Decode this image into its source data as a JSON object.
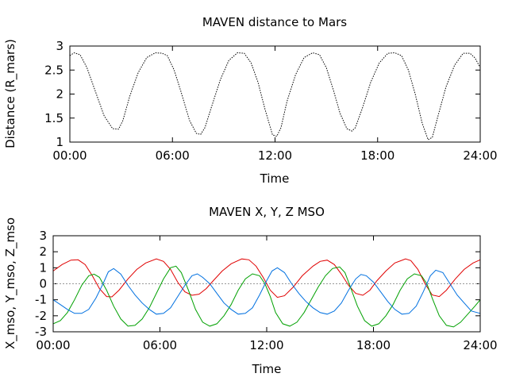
{
  "chart_data": [
    {
      "type": "line",
      "title": "MAVEN distance to Mars",
      "xlabel": "Time",
      "ylabel": "Distance (R_mars)",
      "x_ticks": [
        "00:00",
        "06:00",
        "12:00",
        "18:00",
        "24:00"
      ],
      "xlim_hours": [
        0,
        24
      ],
      "ylim": [
        1,
        3
      ],
      "y_ticks": [
        "1",
        "1.5",
        "2",
        "2.5",
        "3"
      ],
      "grid": false,
      "series": [
        {
          "color": "#000000",
          "dash": true,
          "x_hours": [
            0,
            0.25,
            0.6,
            1.0,
            1.5,
            2.0,
            2.5,
            2.85,
            3.1,
            3.5,
            4.0,
            4.5,
            5.0,
            5.4,
            5.7,
            6.1,
            6.5,
            7.0,
            7.4,
            7.65,
            7.9,
            8.3,
            8.8,
            9.3,
            9.8,
            10.2,
            10.6,
            11.0,
            11.4,
            11.85,
            12.1,
            12.35,
            12.7,
            13.2,
            13.7,
            14.2,
            14.6,
            15.0,
            15.4,
            15.8,
            16.2,
            16.5,
            16.7,
            17.1,
            17.6,
            18.1,
            18.6,
            19.0,
            19.4,
            19.8,
            20.2,
            20.6,
            20.95,
            21.2,
            21.5,
            22.0,
            22.5,
            23.0,
            23.4,
            23.7,
            24.0
          ],
          "values": [
            2.8,
            2.86,
            2.82,
            2.55,
            2.05,
            1.55,
            1.28,
            1.27,
            1.45,
            1.95,
            2.45,
            2.76,
            2.86,
            2.85,
            2.8,
            2.5,
            2.05,
            1.45,
            1.18,
            1.16,
            1.3,
            1.75,
            2.3,
            2.7,
            2.86,
            2.85,
            2.65,
            2.25,
            1.7,
            1.15,
            1.12,
            1.3,
            1.85,
            2.4,
            2.76,
            2.86,
            2.82,
            2.55,
            2.1,
            1.6,
            1.28,
            1.23,
            1.3,
            1.7,
            2.25,
            2.65,
            2.85,
            2.86,
            2.8,
            2.5,
            2.0,
            1.4,
            1.05,
            1.1,
            1.5,
            2.15,
            2.6,
            2.85,
            2.85,
            2.75,
            2.55
          ]
        }
      ]
    },
    {
      "type": "line",
      "title": "MAVEN X, Y, Z MSO",
      "xlabel": "Time",
      "ylabel": "X_mso, Y_mso, Z_mso",
      "x_ticks": [
        "00:00",
        "06:00",
        "12:00",
        "18:00",
        "24:00"
      ],
      "xlim_hours": [
        0,
        24
      ],
      "ylim": [
        -3,
        3
      ],
      "y_ticks": [
        "-3",
        "-2",
        "-1",
        "0",
        "1",
        "2",
        "3"
      ],
      "zero_line": true,
      "grid": false,
      "series": [
        {
          "color": "#e00000",
          "x_hours": [
            0,
            0.5,
            1.0,
            1.4,
            1.8,
            2.2,
            2.6,
            3.0,
            3.3,
            3.7,
            4.2,
            4.7,
            5.2,
            5.8,
            6.2,
            6.6,
            7.0,
            7.4,
            7.8,
            8.2,
            8.6,
            9.0,
            9.5,
            10.0,
            10.6,
            11.0,
            11.4,
            11.8,
            12.2,
            12.6,
            13.0,
            13.5,
            14.0,
            14.6,
            15.0,
            15.4,
            15.8,
            16.2,
            16.6,
            17.0,
            17.4,
            17.8,
            18.2,
            18.7,
            19.2,
            19.8,
            20.1,
            20.5,
            20.9,
            21.3,
            21.7,
            22.1,
            22.6,
            23.1,
            23.6,
            24.0
          ],
          "values": [
            0.8,
            1.2,
            1.48,
            1.5,
            1.2,
            0.5,
            -0.3,
            -0.8,
            -0.82,
            -0.4,
            0.3,
            0.9,
            1.3,
            1.55,
            1.4,
            0.9,
            0.1,
            -0.5,
            -0.72,
            -0.65,
            -0.3,
            0.2,
            0.8,
            1.25,
            1.55,
            1.5,
            1.1,
            0.4,
            -0.4,
            -0.85,
            -0.75,
            -0.2,
            0.5,
            1.1,
            1.4,
            1.48,
            1.2,
            0.6,
            -0.1,
            -0.6,
            -0.72,
            -0.4,
            0.2,
            0.8,
            1.3,
            1.55,
            1.45,
            0.9,
            0.0,
            -0.7,
            -0.8,
            -0.4,
            0.3,
            0.9,
            1.3,
            1.5
          ]
        },
        {
          "color": "#00a000",
          "x_hours": [
            0,
            0.4,
            0.8,
            1.2,
            1.6,
            2.0,
            2.3,
            2.6,
            3.0,
            3.4,
            3.8,
            4.2,
            4.6,
            5.0,
            5.4,
            5.8,
            6.2,
            6.6,
            6.9,
            7.2,
            7.6,
            8.0,
            8.4,
            8.8,
            9.2,
            9.6,
            10.0,
            10.4,
            10.8,
            11.2,
            11.6,
            11.9,
            12.2,
            12.5,
            12.9,
            13.3,
            13.7,
            14.1,
            14.5,
            14.9,
            15.3,
            15.7,
            16.1,
            16.4,
            16.7,
            17.1,
            17.5,
            17.9,
            18.3,
            18.7,
            19.1,
            19.5,
            19.9,
            20.3,
            20.7,
            21.0,
            21.3,
            21.7,
            22.1,
            22.5,
            22.9,
            23.3,
            23.7,
            24.0
          ],
          "values": [
            -2.5,
            -2.3,
            -1.8,
            -1.0,
            -0.1,
            0.5,
            0.6,
            0.4,
            -0.4,
            -1.4,
            -2.2,
            -2.65,
            -2.6,
            -2.2,
            -1.5,
            -0.6,
            0.3,
            1.0,
            1.1,
            0.7,
            -0.4,
            -1.6,
            -2.4,
            -2.65,
            -2.5,
            -2.0,
            -1.3,
            -0.4,
            0.3,
            0.62,
            0.5,
            0.0,
            -0.8,
            -1.8,
            -2.5,
            -2.65,
            -2.4,
            -1.8,
            -1.0,
            -0.2,
            0.5,
            0.95,
            1.05,
            0.7,
            -0.2,
            -1.4,
            -2.3,
            -2.65,
            -2.5,
            -2.0,
            -1.3,
            -0.4,
            0.3,
            0.62,
            0.5,
            0.0,
            -0.9,
            -2.0,
            -2.6,
            -2.7,
            -2.4,
            -1.9,
            -1.4,
            -1.0
          ]
        },
        {
          "color": "#0070e0",
          "x_hours": [
            0,
            0.4,
            0.8,
            1.2,
            1.6,
            2.0,
            2.4,
            2.8,
            3.1,
            3.4,
            3.8,
            4.2,
            4.6,
            5.0,
            5.4,
            5.8,
            6.2,
            6.6,
            7.0,
            7.4,
            7.8,
            8.1,
            8.4,
            8.8,
            9.2,
            9.6,
            10.0,
            10.4,
            10.8,
            11.2,
            11.6,
            12.0,
            12.3,
            12.6,
            13.0,
            13.4,
            13.8,
            14.2,
            14.6,
            15.0,
            15.4,
            15.8,
            16.2,
            16.6,
            17.0,
            17.3,
            17.6,
            18.0,
            18.4,
            18.8,
            19.2,
            19.6,
            20.0,
            20.4,
            20.8,
            21.2,
            21.5,
            21.9,
            22.3,
            22.7,
            23.1,
            23.5,
            24.0
          ],
          "values": [
            -1.0,
            -1.3,
            -1.6,
            -1.85,
            -1.85,
            -1.6,
            -0.9,
            0.0,
            0.75,
            0.95,
            0.6,
            -0.1,
            -0.7,
            -1.2,
            -1.6,
            -1.9,
            -1.85,
            -1.5,
            -0.8,
            -0.1,
            0.5,
            0.62,
            0.4,
            0.0,
            -0.6,
            -1.2,
            -1.6,
            -1.9,
            -1.85,
            -1.5,
            -0.7,
            0.2,
            0.8,
            1.0,
            0.7,
            0.0,
            -0.6,
            -1.1,
            -1.5,
            -1.8,
            -1.9,
            -1.7,
            -1.2,
            -0.4,
            0.3,
            0.58,
            0.5,
            0.1,
            -0.5,
            -1.1,
            -1.6,
            -1.9,
            -1.85,
            -1.4,
            -0.5,
            0.5,
            0.85,
            0.7,
            0.0,
            -0.7,
            -1.2,
            -1.7,
            -1.85
          ]
        }
      ]
    }
  ]
}
